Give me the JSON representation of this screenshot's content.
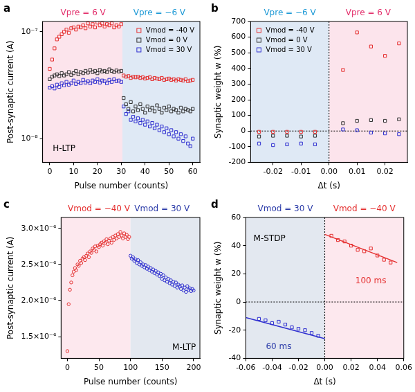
{
  "chart_data": [
    {
      "type": "scatter",
      "panel": "a",
      "log": "y",
      "grid": false,
      "legend": "upper right",
      "x_label": "Pulse number (counts)",
      "y_label": "Post-synaptic current (A)",
      "xlim": [
        -3,
        63
      ],
      "xticks": [
        0,
        10,
        20,
        30,
        40,
        50,
        60
      ],
      "ylim": [
        6e-09,
        1.25e-07
      ],
      "yticks": [
        {
          "value": 1e-08,
          "label": "10⁻⁸"
        },
        {
          "value": 1e-07,
          "label": "10⁻⁷"
        }
      ],
      "x": [
        0,
        1,
        2,
        3,
        4,
        5,
        6,
        7,
        8,
        9,
        10,
        11,
        12,
        13,
        14,
        15,
        16,
        17,
        18,
        19,
        20,
        21,
        22,
        23,
        24,
        25,
        26,
        27,
        28,
        29,
        30,
        31,
        32,
        33,
        34,
        35,
        36,
        37,
        38,
        39,
        40,
        41,
        42,
        43,
        44,
        45,
        46,
        47,
        48,
        49,
        50,
        51,
        52,
        53,
        54,
        55,
        56,
        57,
        58,
        59,
        60
      ],
      "series": [
        {
          "name": "Vmod = -40 V",
          "color": "#e53030",
          "marker": "square",
          "line_style": "none",
          "values": [
            4.5e-08,
            5.5e-08,
            7e-08,
            8.5e-08,
            9e-08,
            9.5e-08,
            1e-07,
            1.05e-07,
            9.8e-08,
            1.08e-07,
            1.1e-07,
            1.05e-07,
            1.12e-07,
            1.1e-07,
            1.15e-07,
            1.08e-07,
            1.2e-07,
            1.12e-07,
            1.18e-07,
            1.1e-07,
            1.22e-07,
            1.15e-07,
            1.2e-07,
            1.12e-07,
            1.18e-07,
            1.15e-07,
            1.2e-07,
            1.1e-07,
            1.15e-07,
            1.12e-07,
            1.18e-07,
            3.9e-08,
            3.8e-08,
            3.85e-08,
            3.7e-08,
            3.8e-08,
            3.75e-08,
            3.8e-08,
            3.7e-08,
            3.75e-08,
            3.65e-08,
            3.7e-08,
            3.75e-08,
            3.6e-08,
            3.7e-08,
            3.65e-08,
            3.6e-08,
            3.7e-08,
            3.55e-08,
            3.6e-08,
            3.65e-08,
            3.55e-08,
            3.6e-08,
            3.5e-08,
            3.6e-08,
            3.55e-08,
            3.5e-08,
            3.6e-08,
            3.45e-08,
            3.5e-08,
            3.55e-08
          ]
        },
        {
          "name": "Vmod = 0 V",
          "color": "#333333",
          "marker": "square",
          "line_style": "none",
          "values": [
            3.6e-08,
            3.8e-08,
            3.9e-08,
            4e-08,
            3.85e-08,
            4.1e-08,
            3.9e-08,
            4e-08,
            4.2e-08,
            3.95e-08,
            4.1e-08,
            4.3e-08,
            4e-08,
            4.2e-08,
            4.1e-08,
            4.3e-08,
            4.15e-08,
            4.4e-08,
            4.2e-08,
            4.3e-08,
            4.1e-08,
            4.4e-08,
            4.25e-08,
            4.3e-08,
            4.2e-08,
            4.45e-08,
            4.3e-08,
            4.2e-08,
            4.35e-08,
            4.25e-08,
            4.3e-08,
            2.4e-08,
            2.1e-08,
            1.9e-08,
            2.2e-08,
            1.8e-08,
            2e-08,
            1.85e-08,
            2.1e-08,
            1.9e-08,
            1.75e-08,
            2e-08,
            1.85e-08,
            1.95e-08,
            1.8e-08,
            2.05e-08,
            1.9e-08,
            1.75e-08,
            1.95e-08,
            1.85e-08,
            2e-08,
            1.8e-08,
            1.9e-08,
            1.85e-08,
            1.75e-08,
            1.95e-08,
            1.8e-08,
            1.9e-08,
            1.85e-08,
            1.8e-08,
            1.9e-08
          ]
        },
        {
          "name": "Vmod = 30 V",
          "color": "#3030d0",
          "marker": "square",
          "line_style": "none",
          "values": [
            3e-08,
            3.1e-08,
            2.95e-08,
            3.2e-08,
            3.05e-08,
            3.3e-08,
            3.15e-08,
            3.4e-08,
            3.2e-08,
            3.3e-08,
            3.5e-08,
            3.25e-08,
            3.4e-08,
            3.3e-08,
            3.55e-08,
            3.35e-08,
            3.45e-08,
            3.3e-08,
            3.5e-08,
            3.4e-08,
            3.6e-08,
            3.35e-08,
            3.5e-08,
            3.45e-08,
            3.3e-08,
            3.55e-08,
            3.4e-08,
            3.6e-08,
            3.45e-08,
            3.5e-08,
            3.4e-08,
            2e-08,
            1.7e-08,
            1.8e-08,
            1.5e-08,
            1.6e-08,
            1.45e-08,
            1.55e-08,
            1.4e-08,
            1.5e-08,
            1.35e-08,
            1.45e-08,
            1.3e-08,
            1.4e-08,
            1.25e-08,
            1.35e-08,
            1.2e-08,
            1.3e-08,
            1.15e-08,
            1.25e-08,
            1.1e-08,
            1.2e-08,
            1.05e-08,
            1.15e-08,
            1e-08,
            1.1e-08,
            9.5e-09,
            1.05e-08,
            9e-09,
            8.5e-09,
            1e-08
          ]
        }
      ],
      "bands": [
        {
          "from": -3,
          "to": 30.5,
          "color": "#fce4ec"
        },
        {
          "from": 30.5,
          "to": 63,
          "color": "#dfe9f5"
        }
      ],
      "headers": [
        {
          "text": "Vpre = 6 V",
          "x": 14,
          "color": "#e3306c"
        },
        {
          "text": "Vpre = −6 V",
          "x": 46,
          "color": "#1f9ad6"
        }
      ],
      "annotations": [
        {
          "text": "H-LTP",
          "x": 6,
          "y": 8e-09,
          "color": "#000000"
        }
      ]
    },
    {
      "type": "scatter",
      "panel": "b",
      "grid": false,
      "legend": "upper left",
      "x_label": "Δt (s)",
      "y_label": "Synaptic weight w (%)",
      "xlim": [
        -0.028,
        0.028
      ],
      "xticks": [
        -0.02,
        -0.01,
        {
          "value": 0,
          "label": "0.00"
        },
        0.01,
        0.02
      ],
      "ylim": [
        -200,
        700
      ],
      "yticks": [
        -200,
        -100,
        0,
        100,
        200,
        300,
        400,
        500,
        600,
        700
      ],
      "x": [
        -0.025,
        -0.02,
        -0.015,
        -0.01,
        -0.005,
        0.005,
        0.01,
        0.015,
        0.02,
        0.025
      ],
      "series": [
        {
          "name": "Vmod = -40 V",
          "color": "#e53030",
          "marker": "square",
          "line_style": "none",
          "values": [
            -5,
            -5,
            -5,
            -5,
            -5,
            390,
            630,
            540,
            480,
            560
          ]
        },
        {
          "name": "Vmod = 0 V",
          "color": "#333333",
          "marker": "square",
          "line_style": "none",
          "values": [
            -35,
            -30,
            -30,
            -35,
            -30,
            50,
            65,
            70,
            65,
            75
          ]
        },
        {
          "name": "Vmod = 30 V",
          "color": "#3030d0",
          "marker": "square",
          "line_style": "none",
          "values": [
            -80,
            -90,
            -85,
            -80,
            -85,
            10,
            5,
            -10,
            -15,
            -20
          ]
        }
      ],
      "bands": [
        {
          "from": -0.028,
          "to": 0,
          "color": "#dfe9f5"
        },
        {
          "from": 0,
          "to": 0.028,
          "color": "#fce4ec"
        }
      ],
      "guides": [
        {
          "axis": "x",
          "value": 0
        },
        {
          "axis": "y",
          "value": 0
        }
      ],
      "headers": [
        {
          "text": "Vpre = −6 V",
          "x": -0.014,
          "color": "#1f9ad6"
        },
        {
          "text": "Vpre = 6 V",
          "x": 0.014,
          "color": "#e3306c"
        }
      ]
    },
    {
      "type": "scatter",
      "panel": "c",
      "grid": false,
      "x_label": "Pulse number (counts)",
      "y_label": "Post-synaptic current (A)",
      "xlim": [
        -10,
        210
      ],
      "xticks": [
        0,
        50,
        100,
        150,
        200
      ],
      "ylim": [
        1.2e-06,
        3.15e-06
      ],
      "yticks": [
        {
          "value": 1.5e-06,
          "label": "1.5×10⁻⁶"
        },
        {
          "value": 2e-06,
          "label": "2.0×10⁻⁶"
        },
        {
          "value": 2.5e-06,
          "label": "2.5×10⁻⁶"
        },
        {
          "value": 3e-06,
          "label": "3.0×10⁻⁶"
        }
      ],
      "series": [
        {
          "color": "#e53030",
          "marker": "circle",
          "line_style": "none",
          "x": [
            0,
            2,
            4,
            6,
            8,
            10,
            12,
            14,
            16,
            18,
            20,
            22,
            24,
            26,
            28,
            30,
            32,
            34,
            36,
            38,
            40,
            42,
            44,
            46,
            48,
            50,
            52,
            54,
            56,
            58,
            60,
            62,
            64,
            66,
            68,
            70,
            72,
            74,
            76,
            78,
            80,
            82,
            84,
            86,
            88,
            90,
            92,
            94,
            96,
            98
          ],
          "values": [
            1.3e-06,
            1.95e-06,
            2.15e-06,
            2.25e-06,
            2.35e-06,
            2.4e-06,
            2.45e-06,
            2.42e-06,
            2.5e-06,
            2.48e-06,
            2.55e-06,
            2.52e-06,
            2.58e-06,
            2.6e-06,
            2.56e-06,
            2.62e-06,
            2.65e-06,
            2.6e-06,
            2.68e-06,
            2.66e-06,
            2.72e-06,
            2.7e-06,
            2.75e-06,
            2.68e-06,
            2.76e-06,
            2.74e-06,
            2.78e-06,
            2.8e-06,
            2.76e-06,
            2.82e-06,
            2.8e-06,
            2.85e-06,
            2.78e-06,
            2.83e-06,
            2.86e-06,
            2.8e-06,
            2.88e-06,
            2.84e-06,
            2.9e-06,
            2.86e-06,
            2.92e-06,
            2.88e-06,
            2.95e-06,
            2.9e-06,
            2.86e-06,
            2.93e-06,
            2.88e-06,
            2.91e-06,
            2.85e-06,
            2.88e-06
          ]
        },
        {
          "color": "#3030d0",
          "marker": "circle",
          "line_style": "none",
          "x": [
            100,
            102,
            104,
            106,
            108,
            110,
            112,
            114,
            116,
            118,
            120,
            122,
            124,
            126,
            128,
            130,
            132,
            134,
            136,
            138,
            140,
            142,
            144,
            146,
            148,
            150,
            152,
            154,
            156,
            158,
            160,
            162,
            164,
            166,
            168,
            170,
            172,
            174,
            176,
            178,
            180,
            182,
            184,
            186,
            188,
            190,
            192,
            194,
            196,
            198,
            200
          ],
          "values": [
            2.62e-06,
            2.58e-06,
            2.6e-06,
            2.55e-06,
            2.57e-06,
            2.52e-06,
            2.56e-06,
            2.5e-06,
            2.53e-06,
            2.48e-06,
            2.5e-06,
            2.46e-06,
            2.49e-06,
            2.44e-06,
            2.47e-06,
            2.42e-06,
            2.45e-06,
            2.4e-06,
            2.43e-06,
            2.38e-06,
            2.41e-06,
            2.36e-06,
            2.39e-06,
            2.34e-06,
            2.37e-06,
            2.3e-06,
            2.35e-06,
            2.28e-06,
            2.32e-06,
            2.26e-06,
            2.3e-06,
            2.24e-06,
            2.28e-06,
            2.22e-06,
            2.26e-06,
            2.2e-06,
            2.25e-06,
            2.18e-06,
            2.22e-06,
            2.2e-06,
            2.16e-06,
            2.21e-06,
            2.14e-06,
            2.18e-06,
            2.12e-06,
            2.2e-06,
            2.15e-06,
            2.17e-06,
            2.13e-06,
            2.16e-06,
            2.14e-06
          ]
        }
      ],
      "bands": [
        {
          "from": -10,
          "to": 100,
          "color": "#fde8ee"
        },
        {
          "from": 100,
          "to": 210,
          "color": "#e3e8f0"
        }
      ],
      "headers": [
        {
          "text": "Vmod = −40 V",
          "x": 50,
          "color": "#e53030"
        },
        {
          "text": "Vmod = 30 V",
          "x": 150,
          "color": "#2a3aa8"
        }
      ],
      "annotations": [
        {
          "text": "M-LTP",
          "x": 185,
          "y": 1.35e-06,
          "color": "#000000"
        }
      ]
    },
    {
      "type": "scatter",
      "panel": "d",
      "grid": false,
      "x_label": "Δt (s)",
      "y_label": "Synaptic weight w (%)",
      "xlim": [
        -0.06,
        0.06
      ],
      "xticks": [
        -0.06,
        -0.04,
        -0.02,
        {
          "value": 0,
          "label": "0.00"
        },
        0.02,
        0.04,
        0.06
      ],
      "ylim": [
        -40,
        60
      ],
      "yticks": [
        -40,
        -20,
        0,
        20,
        40,
        60
      ],
      "series": [
        {
          "color": "#3030d0",
          "marker": "square",
          "line_style": "none",
          "x": [
            -0.05,
            -0.045,
            -0.04,
            -0.035,
            -0.03,
            -0.025,
            -0.02,
            -0.015,
            -0.01,
            -0.005
          ],
          "values": [
            -12,
            -13,
            -15,
            -14,
            -16,
            -18,
            -19,
            -20,
            -22,
            -24
          ]
        },
        {
          "color": "#e53030",
          "marker": "square",
          "line_style": "none",
          "x": [
            0.005,
            0.01,
            0.015,
            0.02,
            0.025,
            0.03,
            0.035,
            0.04,
            0.045,
            0.05
          ],
          "values": [
            47,
            44,
            43,
            40,
            37,
            36,
            38,
            33,
            30,
            28
          ]
        },
        {
          "type": "line",
          "color": "#3030d0",
          "marker": "none",
          "line_style": "solid",
          "x": [
            -0.06,
            0
          ],
          "values": [
            -11,
            -26
          ]
        },
        {
          "type": "line",
          "color": "#e53030",
          "marker": "none",
          "line_style": "solid",
          "x": [
            0,
            0.055
          ],
          "values": [
            48,
            28
          ]
        }
      ],
      "bands": [
        {
          "from": -0.06,
          "to": 0,
          "color": "#e3e8f0"
        },
        {
          "from": 0,
          "to": 0.06,
          "color": "#fde8ee"
        }
      ],
      "guides": [
        {
          "axis": "x",
          "value": 0
        },
        {
          "axis": "y",
          "value": 0
        }
      ],
      "headers": [
        {
          "text": "Vmod = 30 V",
          "x": -0.03,
          "color": "#2a3aa8"
        },
        {
          "text": "Vmod = −40 V",
          "x": 0.03,
          "color": "#e53030"
        }
      ],
      "annotations": [
        {
          "text": "M-STDP",
          "x": -0.042,
          "y": 45,
          "color": "#000000"
        },
        {
          "text": "100 ms",
          "x": 0.035,
          "y": 15,
          "color": "#e53030"
        },
        {
          "text": "60 ms",
          "x": -0.035,
          "y": -32,
          "color": "#2a3aa8"
        }
      ]
    }
  ]
}
